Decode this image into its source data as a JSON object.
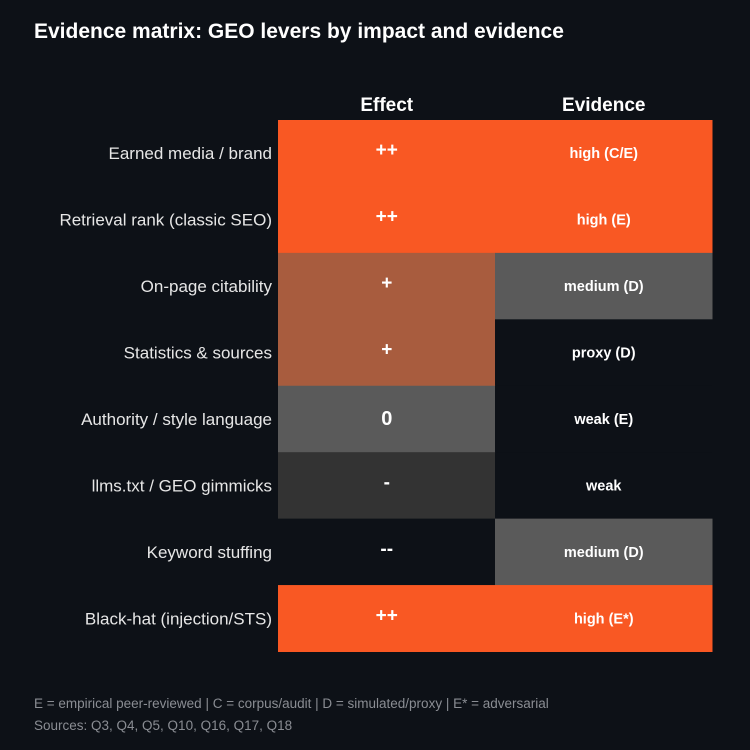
{
  "chart_data": {
    "type": "table",
    "title": "Evidence matrix: GEO levers by impact and evidence",
    "columns": [
      "Effect",
      "Evidence"
    ],
    "rows": [
      {
        "label": "Earned media / brand",
        "effect": "++",
        "evidence": "high (C/E)",
        "effect_color": "#f95823",
        "evidence_color": "#f95823"
      },
      {
        "label": "Retrieval rank (classic SEO)",
        "effect": "++",
        "evidence": "high (E)",
        "effect_color": "#f95823",
        "evidence_color": "#f95823"
      },
      {
        "label": "On-page citability",
        "effect": "+",
        "evidence": "medium (D)",
        "effect_color": "#a85c3e",
        "evidence_color": "#5a5a5a"
      },
      {
        "label": "Statistics & sources",
        "effect": "+",
        "evidence": "proxy (D)",
        "effect_color": "#a85c3e",
        "evidence_color": "#0d1117"
      },
      {
        "label": "Authority / style language",
        "effect": "0",
        "evidence": "weak (E)",
        "effect_color": "#5a5a5a",
        "evidence_color": "#0d1117"
      },
      {
        "label": "llms.txt / GEO gimmicks",
        "effect": "-",
        "evidence": "weak",
        "effect_color": "#333333",
        "evidence_color": "#0d1117"
      },
      {
        "label": "Keyword stuffing",
        "effect": "--",
        "evidence": "medium (D)",
        "effect_color": "#0d1117",
        "evidence_color": "#5a5a5a"
      },
      {
        "label": "Black-hat (injection/STS)",
        "effect": "++",
        "evidence": "high (E*)",
        "effect_color": "#f95823",
        "evidence_color": "#f95823"
      }
    ]
  },
  "footer": {
    "legend": "E = empirical peer-reviewed | C = corpus/audit | D = simulated/proxy | E* = adversarial",
    "sources": "Sources: Q3, Q4, Q5, Q10, Q16, Q17, Q18"
  }
}
